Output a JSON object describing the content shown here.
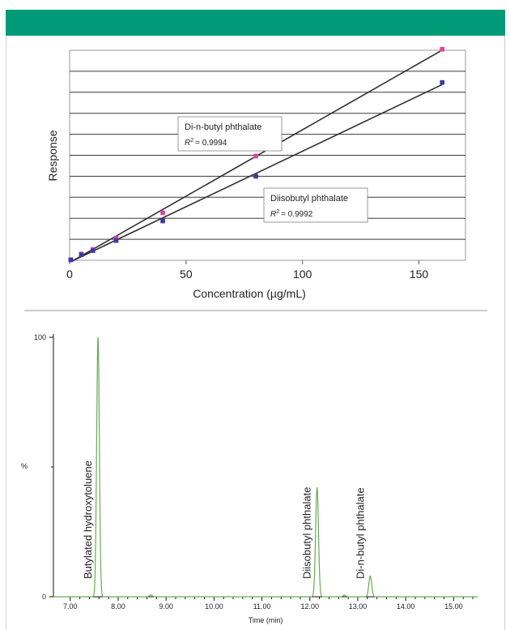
{
  "colors": {
    "header_bar": "#009a78",
    "fit_line": "#2f2f2f",
    "series_a_marker": "#e0409a",
    "series_b_marker": "#3a3aa8",
    "chromatogram_trace": "#6aaa52"
  },
  "chart_data": [
    {
      "type": "scatter",
      "xlabel": "Concentration (µg/mL)",
      "ylabel": "Response",
      "xlim": [
        0,
        170
      ],
      "ylim": [
        0,
        100
      ],
      "x_ticks": [
        "0",
        "50",
        "100",
        "150"
      ],
      "y_gridlines": 9,
      "y_tick_labels_shown": false,
      "grid": true,
      "series": [
        {
          "name": "Di-n-butyl phthalate",
          "r2_label": "R",
          "r2_value": "= 0.9994",
          "marker_color": "#e0409a",
          "x": [
            0.5,
            5,
            10,
            20,
            40,
            80,
            160
          ],
          "y": [
            0.3,
            3.0,
            5.2,
            10.6,
            22.6,
            49.6,
            100.5
          ]
        },
        {
          "name": "Diisobutyl phthalate",
          "r2_label": "R",
          "r2_value": "= 0.9992",
          "marker_color": "#3a3aa8",
          "x": [
            0.5,
            5,
            10,
            20,
            40,
            80,
            160
          ],
          "y": [
            0.2,
            2.6,
            4.6,
            9.4,
            18.7,
            40.0,
            84.7
          ]
        }
      ]
    },
    {
      "type": "line",
      "xlabel": "Time (min)",
      "ylabel": "%",
      "xlim": [
        6.65,
        15.5
      ],
      "ylim": [
        0,
        100
      ],
      "x_ticks": [
        "7.00",
        "8.00",
        "9.00",
        "10.00",
        "11.00",
        "12.00",
        "13.00",
        "14.00",
        "15.00"
      ],
      "y_ticks": [
        "0",
        "100"
      ],
      "peaks": [
        {
          "label": "Butylated hydroxytoluene",
          "x": 7.58,
          "height": 100,
          "width": 0.028
        },
        {
          "label": "Diisobutyl phthalate",
          "x": 12.15,
          "height": 42,
          "width": 0.03
        },
        {
          "label": "Di-n-butyl phthalate",
          "x": 13.26,
          "height": 8,
          "width": 0.03
        }
      ],
      "minor_peaks": [
        {
          "x": 8.68,
          "height": 0.7
        },
        {
          "x": 12.72,
          "height": 0.6
        }
      ]
    }
  ]
}
